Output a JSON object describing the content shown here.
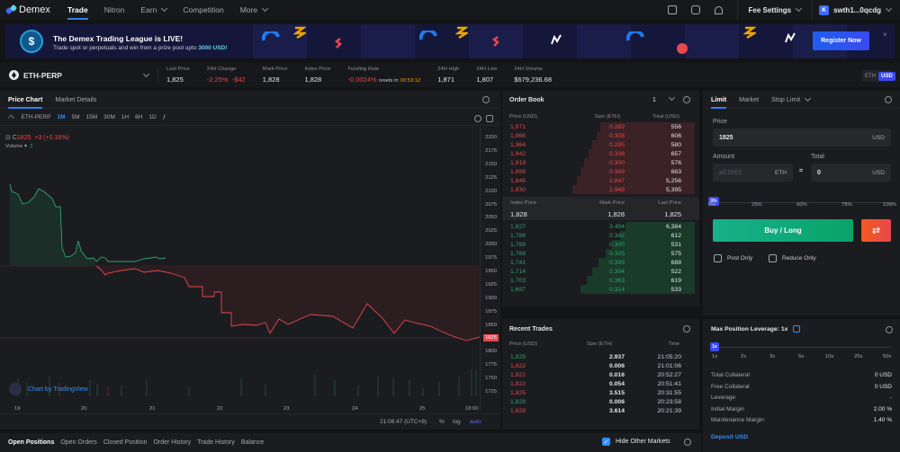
{
  "nav": {
    "brand": "Demex",
    "items": [
      {
        "label": "Trade",
        "active": true
      },
      {
        "label": "Nitron"
      },
      {
        "label": "Earn",
        "dropdown": true
      },
      {
        "label": "Competition"
      },
      {
        "label": "More",
        "dropdown": true
      }
    ],
    "fee_settings": "Fee Settings",
    "account_initial": "K",
    "account": "swth1...0qcdg"
  },
  "banner": {
    "title": "The Demex Trading League is LIVE!",
    "subtitle_prefix": "Trade spot or perpetuals and win from a prize pool upto ",
    "subtitle_highlight": "3000 USD!",
    "cta": "Register Now",
    "close": "×"
  },
  "market": {
    "pair": "ETH-PERP",
    "stats": [
      {
        "label": "Last Price",
        "value": "1,825"
      },
      {
        "label": "24H Change",
        "value": "-2.25%",
        "value2": "-$42"
      },
      {
        "label": "Mark Price",
        "value": "1,828"
      },
      {
        "label": "Index Price",
        "value": "1,828"
      },
      {
        "label": "Funding Rate",
        "value": "-0.0024%",
        "resets": "resets in",
        "countdown": "00:53:12"
      },
      {
        "label": "24H High",
        "value": "1,871"
      },
      {
        "label": "24H Low",
        "value": "1,807"
      },
      {
        "label": "24H Volume",
        "value": "$679,236.68"
      }
    ],
    "ccy_toggle": [
      "ETH",
      "USD"
    ],
    "ccy_selected": "USD"
  },
  "chart": {
    "tabs": [
      "Price Chart",
      "Market Details"
    ],
    "toolbar": {
      "symbol": "ETH-PERP",
      "intervals": [
        "1M",
        "5M",
        "15M",
        "30M",
        "1H",
        "6H",
        "1D"
      ],
      "selected": "1M",
      "fx": "ƒ"
    },
    "legend": {
      "prefix": "C",
      "close": "1825",
      "change": "+3 (+0.16%)",
      "volume_label": "Volume",
      "volume_value": "3"
    },
    "attribution": "Chart by TradingView",
    "time": "21:06:47 (UTC+8)",
    "scale_opts": [
      "%",
      "log",
      "auto"
    ]
  },
  "chart_data": {
    "type": "area",
    "title": "ETH-PERP 1M",
    "yticks": [
      2200,
      2175,
      2150,
      2125,
      2100,
      2075,
      2050,
      2025,
      2000,
      1975,
      1950,
      1925,
      1900,
      1875,
      1850,
      1825,
      1800,
      1775,
      1750,
      1725
    ],
    "xticks": [
      "19",
      "20",
      "21",
      "22",
      "23",
      "24",
      "25",
      "18:00"
    ],
    "last_price": 1825,
    "baseline": 1962,
    "series": [
      {
        "name": "Close",
        "x": [
          "19",
          "19.5",
          "20",
          "20.5",
          "21",
          "21.5",
          "22",
          "22.5",
          "23",
          "23.5",
          "24",
          "24.5",
          "25",
          "25.5"
        ],
        "values": [
          2105,
          2090,
          1995,
          1965,
          1955,
          1950,
          1915,
          1895,
          1870,
          1875,
          1880,
          1870,
          1850,
          1825
        ]
      }
    ],
    "volume_label": "Volume"
  },
  "orderbook": {
    "title": "Order Book",
    "tick": "1",
    "headers": [
      "Price (USD)",
      "Size (ETH)",
      "Total (USD)"
    ],
    "asks": [
      {
        "price": "1,971",
        "size": "0.282",
        "total": "556",
        "depth": 0.48
      },
      {
        "price": "1,966",
        "size": "0.308",
        "total": "606",
        "depth": 0.5
      },
      {
        "price": "1,964",
        "size": "0.295",
        "total": "580",
        "depth": 0.52
      },
      {
        "price": "1,942",
        "size": "0.338",
        "total": "657",
        "depth": 0.54
      },
      {
        "price": "1,919",
        "size": "0.300",
        "total": "576",
        "depth": 0.56
      },
      {
        "price": "1,899",
        "size": "0.349",
        "total": "663",
        "depth": 0.58
      },
      {
        "price": "1,846",
        "size": "2.847",
        "total": "5,256",
        "depth": 0.6
      },
      {
        "price": "1,830",
        "size": "2.948",
        "total": "5,395",
        "depth": 0.62
      }
    ],
    "mid": {
      "labels": [
        "Index Price",
        "Mark Price",
        "Last Price"
      ],
      "values": [
        "1,828",
        "1,828",
        "1,825"
      ]
    },
    "bids": [
      {
        "price": "1,827",
        "size": "3.494",
        "total": "6,384",
        "depth": 0.35
      },
      {
        "price": "1,788",
        "size": "0.342",
        "total": "612",
        "depth": 0.38
      },
      {
        "price": "1,769",
        "size": "0.300",
        "total": "531",
        "depth": 0.42
      },
      {
        "price": "1,768",
        "size": "0.325",
        "total": "575",
        "depth": 0.45
      },
      {
        "price": "1,741",
        "size": "0.395",
        "total": "688",
        "depth": 0.49
      },
      {
        "price": "1,714",
        "size": "0.304",
        "total": "522",
        "depth": 0.52
      },
      {
        "price": "1,703",
        "size": "0.363",
        "total": "619",
        "depth": 0.55
      },
      {
        "price": "1,697",
        "size": "0.314",
        "total": "533",
        "depth": 0.58
      }
    ]
  },
  "trades": {
    "title": "Recent Trades",
    "headers": [
      "Price (USD)",
      "Size (ETH)",
      "Time"
    ],
    "rows": [
      {
        "price": "1,825",
        "size": "2.937",
        "time": "21:05:20",
        "side": "buy"
      },
      {
        "price": "1,822",
        "size": "0.006",
        "time": "21:01:06",
        "side": "sell"
      },
      {
        "price": "1,822",
        "size": "0.016",
        "time": "20:52:27",
        "side": "sell"
      },
      {
        "price": "1,822",
        "size": "0.054",
        "time": "20:51:41",
        "side": "sell"
      },
      {
        "price": "1,825",
        "size": "3.515",
        "time": "20:31:55",
        "side": "sell"
      },
      {
        "price": "1,829",
        "size": "0.006",
        "time": "20:23:58",
        "side": "buy"
      },
      {
        "price": "1,828",
        "size": "3.614",
        "time": "20:21:39",
        "side": "sell"
      }
    ]
  },
  "order_form": {
    "tabs": [
      "Limit",
      "Market",
      "Stop Limit"
    ],
    "price_label": "Price",
    "price_value": "1825",
    "price_unit": "USD",
    "amount_label": "Amount",
    "amount_placeholder": "≥0.0001",
    "amount_unit": "ETH",
    "equals": "=",
    "total_label": "Total",
    "total_value": "0",
    "total_unit": "USD",
    "slider_value": "0%",
    "slider_ticks": [
      "0%",
      "25%",
      "50%",
      "75%",
      "100%"
    ],
    "buy_label": "Buy / Long",
    "swap_icon": "⇄",
    "post_only": "Post Only",
    "reduce_only": "Reduce Only"
  },
  "leverage": {
    "title": "Max Position Leverage:",
    "value": "1x",
    "knob": "1x",
    "ticks": [
      "1x",
      "2x",
      "3x",
      "5x",
      "10x",
      "25x",
      "50x"
    ],
    "rows": [
      {
        "label": "Total Collateral",
        "value": "0 USD"
      },
      {
        "label": "Free Collateral",
        "value": "0 USD"
      },
      {
        "label": "Leverage",
        "value": "-"
      },
      {
        "label": "Initial Margin",
        "value": "2.00 %"
      },
      {
        "label": "Maintenance Margin",
        "value": "1.40 %"
      }
    ],
    "deposit": "Deposit USD"
  },
  "bottom": {
    "tabs": [
      "Open Positions",
      "Open Orders",
      "Closed Position",
      "Order History",
      "Trade History",
      "Balance"
    ],
    "hide_other": "Hide Other Markets"
  },
  "colors": {
    "accent": "#2f7fe8",
    "up": "#30a46c",
    "down": "#e5484d",
    "buy": "#0aa36a",
    "bg": "#1b1c1f"
  }
}
